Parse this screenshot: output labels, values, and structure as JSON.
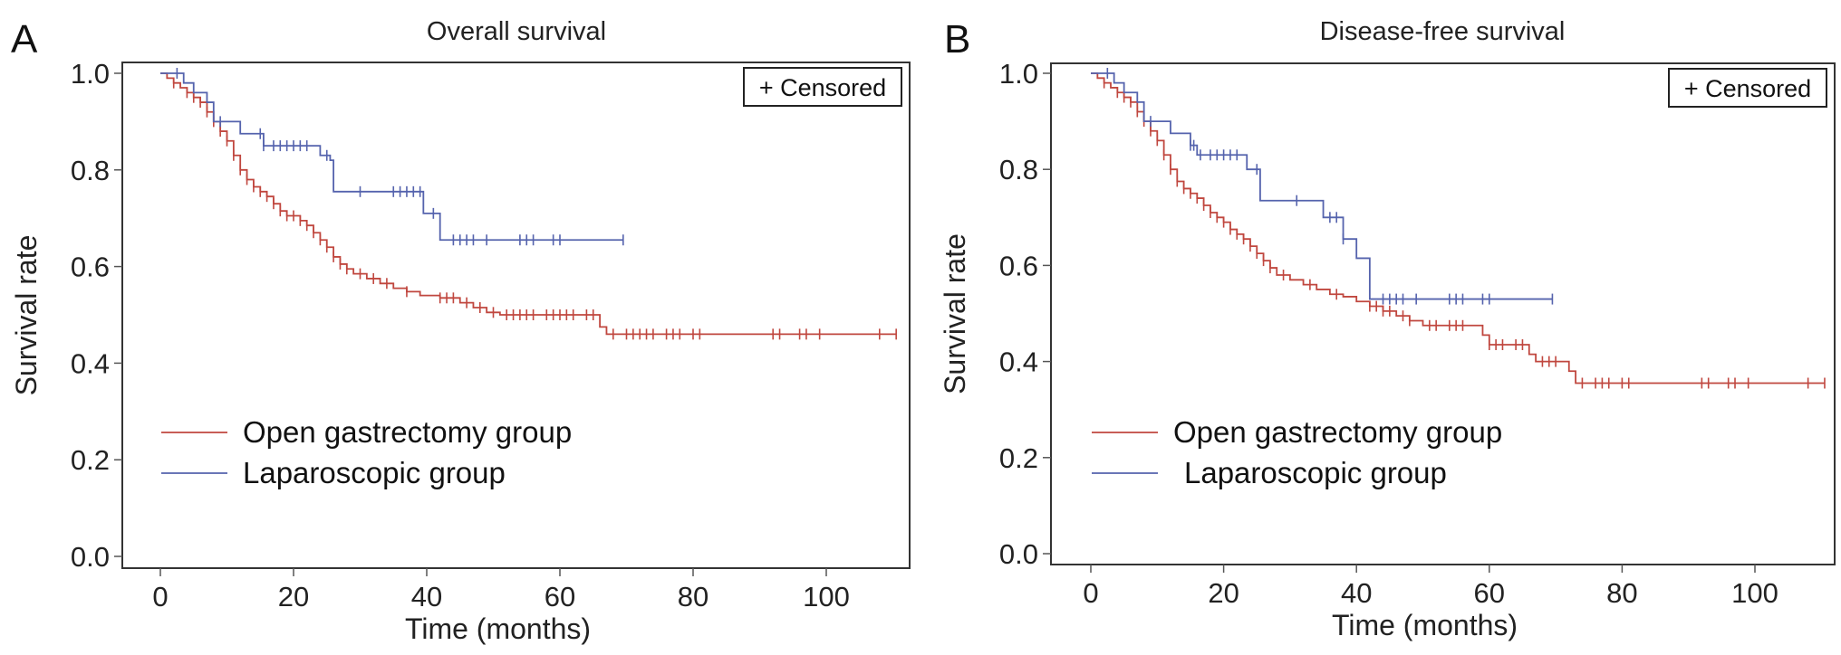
{
  "colors": {
    "open": "#c0473f",
    "lap": "#5563ad",
    "axis": "#333333"
  },
  "chart_data": [
    {
      "type": "line",
      "panel_label": "A",
      "title": "Overall survival",
      "xlabel": "Time (months)",
      "ylabel": "Survival rate",
      "xlim": [
        -6,
        112
      ],
      "ylim": [
        -0.04,
        1.04
      ],
      "xticks": [
        0,
        20,
        40,
        60,
        80,
        100
      ],
      "yticks": [
        "0.0",
        "0.2",
        "0.4",
        "0.6",
        "0.8",
        "1.0"
      ],
      "grid": false,
      "censored_legend": "+ Censored",
      "legend": [
        "Open gastrectomy group",
        "Laparoscopic group"
      ],
      "series": [
        {
          "name": "Open gastrectomy group",
          "color_key": "open",
          "end": 110.5,
          "steps": [
            [
              1,
              0.99
            ],
            [
              2,
              0.98
            ],
            [
              3,
              0.97
            ],
            [
              4,
              0.96
            ],
            [
              5,
              0.95
            ],
            [
              6,
              0.94
            ],
            [
              7,
              0.92
            ],
            [
              8,
              0.9
            ],
            [
              9,
              0.88
            ],
            [
              10,
              0.86
            ],
            [
              11,
              0.83
            ],
            [
              12,
              0.8
            ],
            [
              13,
              0.78
            ],
            [
              14,
              0.765
            ],
            [
              15,
              0.755
            ],
            [
              16,
              0.745
            ],
            [
              17,
              0.73
            ],
            [
              18,
              0.715
            ],
            [
              19,
              0.705
            ],
            [
              21,
              0.695
            ],
            [
              22,
              0.685
            ],
            [
              23,
              0.67
            ],
            [
              24,
              0.655
            ],
            [
              25,
              0.64
            ],
            [
              26,
              0.62
            ],
            [
              27,
              0.605
            ],
            [
              28,
              0.595
            ],
            [
              29,
              0.585
            ],
            [
              31,
              0.575
            ],
            [
              33,
              0.565
            ],
            [
              35,
              0.555
            ],
            [
              37,
              0.548
            ],
            [
              39,
              0.54
            ],
            [
              42,
              0.535
            ],
            [
              45,
              0.525
            ],
            [
              47,
              0.515
            ],
            [
              49,
              0.505
            ],
            [
              51,
              0.5
            ],
            [
              66,
              0.475
            ],
            [
              67,
              0.46
            ]
          ],
          "censored": [
            2,
            4,
            5,
            6,
            7,
            8,
            9,
            10,
            11,
            12,
            13,
            14,
            15,
            16,
            17,
            18,
            19,
            20,
            21,
            22,
            23,
            24,
            25,
            26,
            27,
            28,
            30,
            32,
            34,
            37,
            42,
            43,
            44,
            46,
            48,
            50,
            52,
            53,
            54,
            55,
            56,
            58,
            59,
            60,
            61,
            62,
            64,
            65,
            68,
            70,
            71,
            72,
            73,
            74,
            76,
            77,
            78,
            80,
            81,
            92,
            93,
            96,
            97,
            99,
            108,
            110.5
          ]
        },
        {
          "name": "Laparoscopic group",
          "color_key": "lap",
          "end": 69.5,
          "steps": [
            [
              3.5,
              0.98
            ],
            [
              5,
              0.96
            ],
            [
              7,
              0.94
            ],
            [
              8,
              0.9
            ],
            [
              12,
              0.875
            ],
            [
              15.5,
              0.85
            ],
            [
              24,
              0.83
            ],
            [
              25.5,
              0.82
            ],
            [
              26,
              0.755
            ],
            [
              39.5,
              0.71
            ],
            [
              42,
              0.655
            ]
          ],
          "censored": [
            2.5,
            9,
            15,
            15.5,
            17,
            18,
            19,
            20,
            21,
            22,
            25,
            30,
            35,
            36,
            37,
            38,
            39,
            41,
            44,
            45,
            46,
            47,
            49,
            54,
            55,
            56,
            59,
            60,
            69.5
          ]
        }
      ]
    },
    {
      "type": "line",
      "panel_label": "B",
      "title": "Disease-free survival",
      "xlabel": "Time (months)",
      "ylabel": "Survival rate",
      "xlim": [
        -6,
        112
      ],
      "ylim": [
        -0.04,
        1.04
      ],
      "xticks": [
        0,
        20,
        40,
        60,
        80,
        100
      ],
      "yticks": [
        "0.0",
        "0.2",
        "0.4",
        "0.6",
        "0.8",
        "1.0"
      ],
      "grid": false,
      "censored_legend": "+ Censored",
      "legend": [
        "Open gastrectomy group",
        "Laparoscopic group"
      ],
      "series": [
        {
          "name": "Open gastrectomy group",
          "color_key": "open",
          "end": 110.5,
          "steps": [
            [
              1,
              0.99
            ],
            [
              2,
              0.98
            ],
            [
              3,
              0.97
            ],
            [
              4,
              0.96
            ],
            [
              5,
              0.95
            ],
            [
              6,
              0.94
            ],
            [
              7,
              0.92
            ],
            [
              8,
              0.9
            ],
            [
              9,
              0.88
            ],
            [
              10,
              0.86
            ],
            [
              11,
              0.83
            ],
            [
              12,
              0.8
            ],
            [
              13,
              0.775
            ],
            [
              14,
              0.76
            ],
            [
              15,
              0.75
            ],
            [
              16,
              0.74
            ],
            [
              17,
              0.725
            ],
            [
              18,
              0.71
            ],
            [
              19,
              0.7
            ],
            [
              20,
              0.69
            ],
            [
              21,
              0.675
            ],
            [
              22,
              0.665
            ],
            [
              23,
              0.655
            ],
            [
              24,
              0.64
            ],
            [
              25,
              0.625
            ],
            [
              26,
              0.61
            ],
            [
              27,
              0.595
            ],
            [
              28,
              0.58
            ],
            [
              30,
              0.57
            ],
            [
              32,
              0.56
            ],
            [
              34,
              0.55
            ],
            [
              36,
              0.54
            ],
            [
              38,
              0.535
            ],
            [
              40,
              0.525
            ],
            [
              42,
              0.515
            ],
            [
              44,
              0.505
            ],
            [
              46,
              0.495
            ],
            [
              48,
              0.485
            ],
            [
              50,
              0.475
            ],
            [
              59,
              0.455
            ],
            [
              60,
              0.435
            ],
            [
              66,
              0.415
            ],
            [
              67,
              0.4
            ],
            [
              72,
              0.38
            ],
            [
              73,
              0.355
            ]
          ],
          "censored": [
            2,
            4,
            5,
            6,
            7,
            8,
            9,
            10,
            11,
            12,
            13,
            14,
            15,
            16,
            17,
            18,
            19,
            20,
            21,
            22,
            23,
            24,
            25,
            26,
            27,
            29,
            33,
            37,
            42,
            43,
            44,
            45,
            47,
            48,
            51,
            52,
            54,
            55,
            56,
            60,
            61,
            62,
            64,
            65,
            68,
            69,
            70,
            74,
            76,
            77,
            78,
            80,
            81,
            92,
            93,
            96,
            97,
            99,
            108,
            110.5
          ]
        },
        {
          "name": "Laparoscopic group",
          "color_key": "lap",
          "end": 69.5,
          "steps": [
            [
              3.5,
              0.98
            ],
            [
              5,
              0.96
            ],
            [
              7,
              0.94
            ],
            [
              8,
              0.9
            ],
            [
              12,
              0.875
            ],
            [
              15,
              0.85
            ],
            [
              16,
              0.83
            ],
            [
              23.5,
              0.8
            ],
            [
              25.5,
              0.735
            ],
            [
              35,
              0.7
            ],
            [
              38,
              0.655
            ],
            [
              40,
              0.615
            ],
            [
              42,
              0.53
            ]
          ],
          "censored": [
            2.5,
            9,
            15,
            15.5,
            16.5,
            18,
            19,
            20,
            21,
            22,
            25,
            31,
            36,
            37,
            38,
            44,
            45,
            46,
            47,
            49,
            54,
            55,
            56,
            59,
            60,
            69.5
          ]
        }
      ]
    }
  ]
}
